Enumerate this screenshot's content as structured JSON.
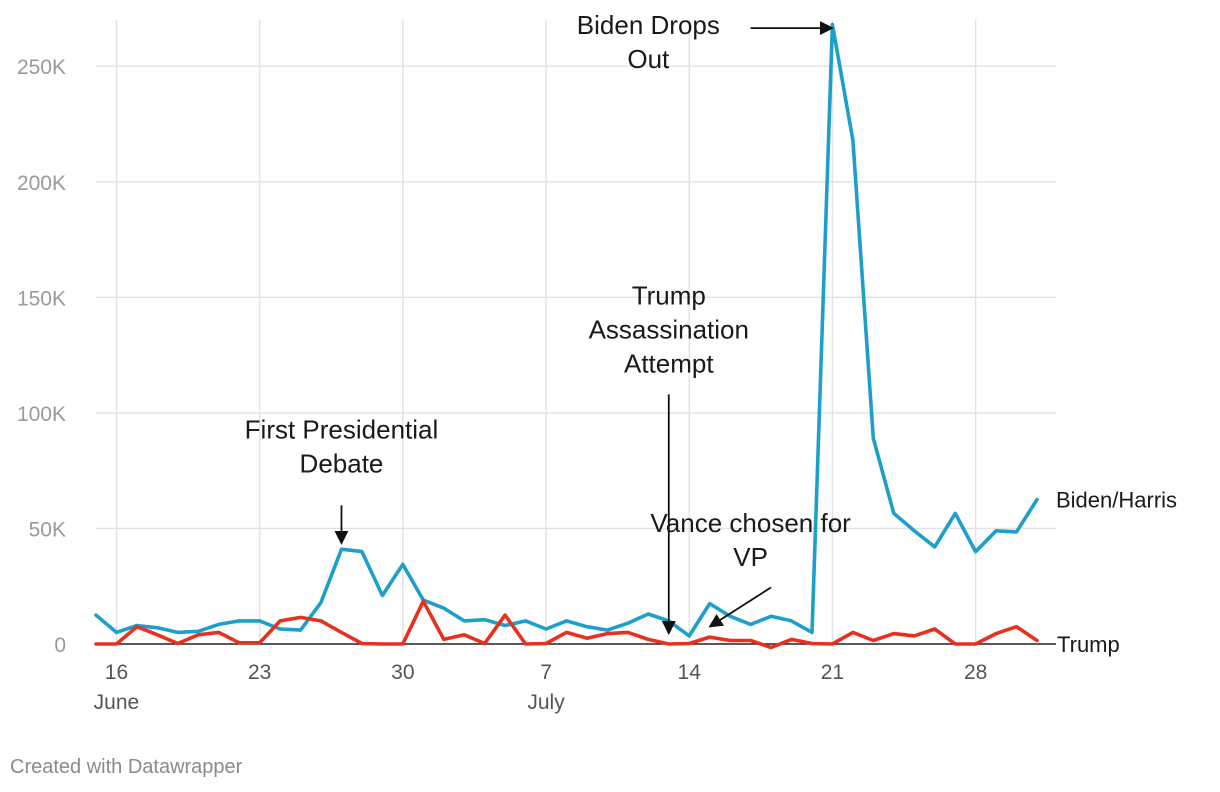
{
  "chart_data": {
    "type": "line",
    "x_axis": {
      "type": "date",
      "range": [
        "2024-06-15",
        "2024-07-31"
      ],
      "ticks": [
        {
          "date": "2024-06-16",
          "label": "16",
          "sublabel": "June"
        },
        {
          "date": "2024-06-23",
          "label": "23",
          "sublabel": ""
        },
        {
          "date": "2024-06-30",
          "label": "30",
          "sublabel": ""
        },
        {
          "date": "2024-07-07",
          "label": "7",
          "sublabel": "July"
        },
        {
          "date": "2024-07-14",
          "label": "14",
          "sublabel": ""
        },
        {
          "date": "2024-07-21",
          "label": "21",
          "sublabel": ""
        },
        {
          "date": "2024-07-28",
          "label": "28",
          "sublabel": ""
        }
      ]
    },
    "y_axis": {
      "ylim": [
        0,
        270000
      ],
      "ticks": [
        {
          "value": 0,
          "label": "0"
        },
        {
          "value": 50000,
          "label": "50K"
        },
        {
          "value": 100000,
          "label": "100K"
        },
        {
          "value": 150000,
          "label": "150K"
        },
        {
          "value": 200000,
          "label": "200K"
        },
        {
          "value": 250000,
          "label": "250K"
        }
      ],
      "grid": true
    },
    "dates": [
      "2024-06-15",
      "2024-06-16",
      "2024-06-17",
      "2024-06-18",
      "2024-06-19",
      "2024-06-20",
      "2024-06-21",
      "2024-06-22",
      "2024-06-23",
      "2024-06-24",
      "2024-06-25",
      "2024-06-26",
      "2024-06-27",
      "2024-06-28",
      "2024-06-29",
      "2024-06-30",
      "2024-07-01",
      "2024-07-02",
      "2024-07-03",
      "2024-07-04",
      "2024-07-05",
      "2024-07-06",
      "2024-07-07",
      "2024-07-08",
      "2024-07-09",
      "2024-07-10",
      "2024-07-11",
      "2024-07-12",
      "2024-07-13",
      "2024-07-14",
      "2024-07-15",
      "2024-07-16",
      "2024-07-17",
      "2024-07-18",
      "2024-07-19",
      "2024-07-20",
      "2024-07-21",
      "2024-07-22",
      "2024-07-23",
      "2024-07-24",
      "2024-07-25",
      "2024-07-26",
      "2024-07-27",
      "2024-07-28",
      "2024-07-29",
      "2024-07-30",
      "2024-07-31"
    ],
    "series": [
      {
        "name": "Biden/Harris",
        "color": "#1d9fcc",
        "values": [
          12500,
          5000,
          8000,
          7000,
          5000,
          5500,
          8500,
          10000,
          10000,
          6500,
          6000,
          18000,
          41000,
          40000,
          21000,
          34500,
          19000,
          15500,
          10000,
          10500,
          8000,
          10000,
          6500,
          10000,
          7500,
          6000,
          9000,
          13000,
          10000,
          3500,
          17500,
          12000,
          8500,
          12000,
          10000,
          5000,
          268000,
          218000,
          89000,
          56500,
          49000,
          42000,
          56500,
          40000,
          49000,
          48500,
          62500
        ]
      },
      {
        "name": "Trump",
        "color": "#e8301e",
        "values": [
          0,
          0,
          7500,
          4000,
          200,
          4000,
          5000,
          500,
          500,
          10000,
          11500,
          10000,
          5000,
          200,
          0,
          0,
          18500,
          2000,
          4000,
          200,
          12500,
          0,
          200,
          5000,
          2500,
          4500,
          5000,
          2000,
          0,
          200,
          3000,
          1500,
          1500,
          -1500,
          2000,
          200,
          0,
          5000,
          1500,
          4500,
          3500,
          6500,
          0,
          0,
          4500,
          7500,
          1500
        ]
      }
    ],
    "annotations": [
      {
        "lines": [
          "First Presidential",
          "Debate"
        ],
        "text_date": "2024-06-27",
        "text_value": 89000,
        "arrow_from": {
          "date": "2024-06-27",
          "value": 60000
        },
        "arrow_to": {
          "date": "2024-06-27",
          "value": 43500
        }
      },
      {
        "lines": [
          "Trump",
          "Assassination",
          "Attempt"
        ],
        "text_date": "2024-07-13",
        "text_value": 147000,
        "arrow_from": {
          "date": "2024-07-13",
          "value": 108000
        },
        "arrow_to": {
          "date": "2024-07-13",
          "value": 4500
        }
      },
      {
        "lines": [
          "Vance chosen for",
          "VP"
        ],
        "text_date": "2024-07-17",
        "text_value": 48500,
        "arrow_from": {
          "date": "2024-07-18",
          "value": 24500
        },
        "arrow_to": {
          "date": "2024-07-15",
          "value": 7500
        }
      },
      {
        "lines": [
          "Biden Drops",
          "Out"
        ],
        "text_date": "2024-07-12",
        "text_value": 264000,
        "arrow_from": {
          "date": "2024-07-17",
          "value": 266500
        },
        "arrow_to": {
          "date": "2024-07-21",
          "value": 266500
        }
      }
    ],
    "title": "",
    "xlabel": "",
    "ylabel": "",
    "legend": "direct labels at line ends"
  },
  "credit": "Created with Datawrapper"
}
